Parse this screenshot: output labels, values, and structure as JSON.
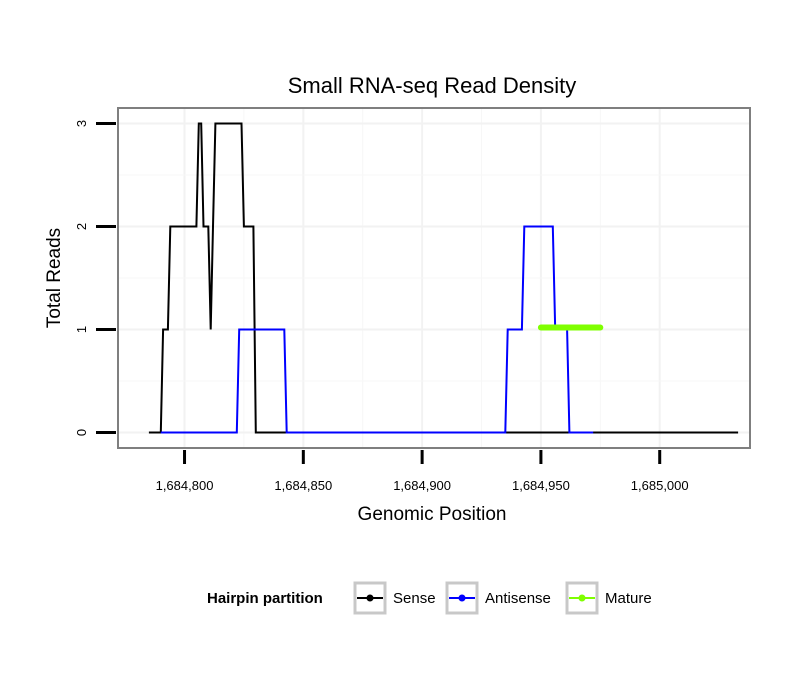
{
  "chart_data": {
    "type": "line",
    "title": "Small RNA-seq Read Density",
    "xlabel": "Genomic Position",
    "ylabel": "Total Reads",
    "xlim": [
      1684772,
      1685038
    ],
    "ylim": [
      -0.15,
      3.15
    ],
    "x_ticks": [
      1684800,
      1684850,
      1684900,
      1684950,
      1685000
    ],
    "x_tick_labels": [
      "1,684,800",
      "1,684,850",
      "1,684,900",
      "1,684,950",
      "1,685,000"
    ],
    "y_ticks": [
      0,
      1,
      2,
      3
    ],
    "y_tick_labels": [
      "0",
      "1",
      "2",
      "3"
    ],
    "grid": true,
    "legend": {
      "title": "Hairpin partition",
      "position": "bottom",
      "entries": [
        "Sense",
        "Antisense",
        "Mature"
      ]
    },
    "series": [
      {
        "name": "Sense",
        "color": "#000000",
        "points": [
          [
            1684785,
            0
          ],
          [
            1684790,
            0
          ],
          [
            1684791,
            1
          ],
          [
            1684793,
            1
          ],
          [
            1684794,
            2
          ],
          [
            1684805,
            2
          ],
          [
            1684806,
            3
          ],
          [
            1684807,
            3
          ],
          [
            1684808,
            2
          ],
          [
            1684810,
            2
          ],
          [
            1684811,
            1
          ],
          [
            1684812,
            2
          ],
          [
            1684813,
            3
          ],
          [
            1684824,
            3
          ],
          [
            1684825,
            2
          ],
          [
            1684829,
            2
          ],
          [
            1684830,
            0
          ],
          [
            1685033,
            0
          ]
        ]
      },
      {
        "name": "Antisense",
        "color": "#0000ff",
        "points": [
          [
            1684790,
            0
          ],
          [
            1684822,
            0
          ],
          [
            1684823,
            1
          ],
          [
            1684842,
            1
          ],
          [
            1684843,
            0
          ],
          [
            1684935,
            0
          ],
          [
            1684936,
            1
          ],
          [
            1684942,
            1
          ],
          [
            1684943,
            2
          ],
          [
            1684955,
            2
          ],
          [
            1684956,
            1
          ],
          [
            1684961,
            1
          ],
          [
            1684962,
            0
          ],
          [
            1684972,
            0
          ]
        ]
      },
      {
        "name": "Mature",
        "color": "#7fff00",
        "points": [
          [
            1684950,
            1.02
          ],
          [
            1684975,
            1.02
          ]
        ]
      }
    ]
  }
}
